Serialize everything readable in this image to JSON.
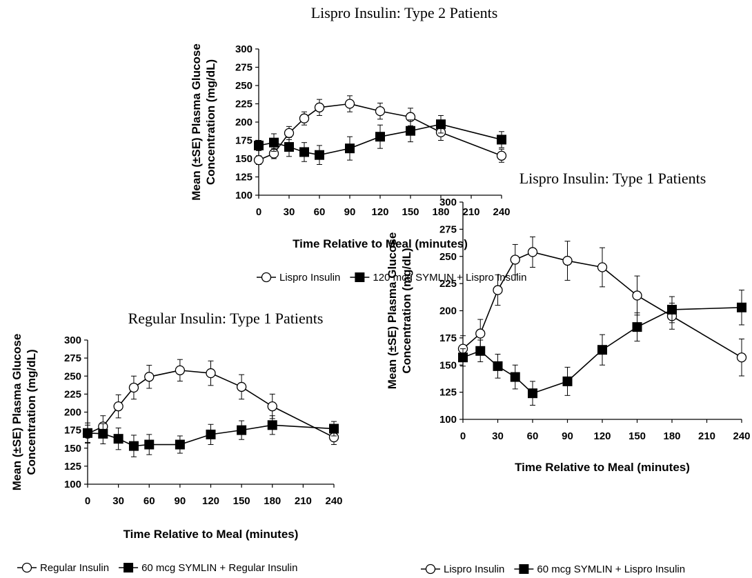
{
  "chart_data": [
    {
      "type": "line",
      "title": "Lispro Insulin:  Type 2 Patients",
      "xlabel": "Time Relative to Meal (minutes)",
      "ylabel_lines": [
        "Mean (±SE) Plasma Glucose",
        "Concentration (mg/dL)"
      ],
      "xlim": [
        0,
        240
      ],
      "ylim": [
        100,
        300
      ],
      "x_ticks": [
        "0",
        "30",
        "60",
        "90",
        "120",
        "150",
        "180",
        "210",
        "240"
      ],
      "y_ticks": [
        "100",
        "125",
        "150",
        "175",
        "200",
        "225",
        "250",
        "275",
        "300"
      ],
      "grid": false,
      "legend_position": "bottom",
      "series": [
        {
          "name": "Lispro Insulin",
          "marker": "open-circle",
          "x": [
            0,
            15,
            30,
            45,
            60,
            90,
            120,
            150,
            180,
            240
          ],
          "y": [
            148,
            157,
            185,
            205,
            220,
            225,
            215,
            207,
            186,
            154
          ],
          "se": [
            6,
            7,
            9,
            9,
            11,
            11,
            11,
            12,
            11,
            9
          ]
        },
        {
          "name": "120 mcg SYMLIN + Lispro Insulin",
          "marker": "filled-square",
          "x": [
            0,
            15,
            30,
            45,
            60,
            90,
            120,
            150,
            180,
            240
          ],
          "y": [
            168,
            172,
            166,
            159,
            155,
            164,
            180,
            188,
            197,
            176
          ],
          "se": [
            7,
            12,
            13,
            13,
            13,
            16,
            16,
            15,
            12,
            11
          ]
        }
      ]
    },
    {
      "type": "line",
      "title": "Regular Insulin:  Type 1 Patients",
      "xlabel": "Time Relative to Meal (minutes)",
      "ylabel_lines": [
        "Mean (±SE) Plasma Glucose",
        "Concentration (mg/dL)"
      ],
      "xlim": [
        0,
        240
      ],
      "ylim": [
        100,
        300
      ],
      "x_ticks": [
        "0",
        "30",
        "60",
        "90",
        "120",
        "150",
        "180",
        "210",
        "240"
      ],
      "y_ticks": [
        "100",
        "125",
        "150",
        "175",
        "200",
        "225",
        "250",
        "275",
        "300"
      ],
      "grid": false,
      "legend_position": "bottom",
      "series": [
        {
          "name": "Regular Insulin",
          "marker": "open-circle",
          "x": [
            0,
            15,
            30,
            45,
            60,
            90,
            120,
            150,
            180,
            240
          ],
          "y": [
            170,
            180,
            208,
            234,
            249,
            258,
            254,
            235,
            208,
            165
          ],
          "se": [
            12,
            15,
            16,
            16,
            16,
            15,
            17,
            17,
            17,
            10
          ]
        },
        {
          "name": "60 mcg SYMLIN + Regular Insulin",
          "marker": "filled-square",
          "x": [
            0,
            15,
            30,
            45,
            60,
            90,
            120,
            150,
            180,
            240
          ],
          "y": [
            171,
            170,
            163,
            153,
            155,
            155,
            169,
            175,
            182,
            177
          ],
          "se": [
            14,
            14,
            15,
            15,
            14,
            12,
            14,
            13,
            13,
            10
          ]
        }
      ]
    },
    {
      "type": "line",
      "title": "Lispro Insulin:  Type 1 Patients",
      "xlabel": "Time Relative to Meal (minutes)",
      "ylabel_lines": [
        "Mean (±SE) Plasma Glucose",
        "Concentration (mg/dL)"
      ],
      "xlim": [
        0,
        240
      ],
      "ylim": [
        100,
        300
      ],
      "x_ticks": [
        "0",
        "30",
        "60",
        "90",
        "120",
        "150",
        "180",
        "210",
        "240"
      ],
      "y_ticks": [
        "100",
        "125",
        "150",
        "175",
        "200",
        "225",
        "250",
        "275",
        "300"
      ],
      "grid": false,
      "legend_position": "bottom",
      "series": [
        {
          "name": "Lispro Insulin",
          "marker": "open-circle",
          "x": [
            0,
            15,
            30,
            45,
            60,
            90,
            120,
            150,
            180,
            240
          ],
          "y": [
            165,
            179,
            219,
            247,
            254,
            246,
            240,
            214,
            195,
            157
          ],
          "se": [
            12,
            13,
            14,
            14,
            14,
            18,
            18,
            18,
            12,
            17
          ]
        },
        {
          "name": "60 mcg SYMLIN + Lispro Insulin",
          "marker": "filled-square",
          "x": [
            0,
            15,
            30,
            45,
            60,
            90,
            120,
            150,
            180,
            240
          ],
          "y": [
            157,
            163,
            149,
            139,
            124,
            135,
            164,
            185,
            201,
            203
          ],
          "se": [
            8,
            10,
            11,
            11,
            11,
            13,
            14,
            13,
            12,
            16
          ]
        }
      ]
    }
  ]
}
